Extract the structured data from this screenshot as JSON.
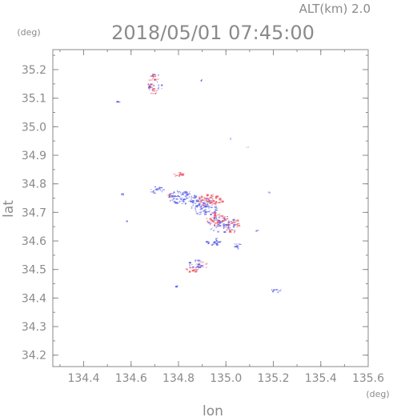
{
  "chart_data": {
    "type": "scatter",
    "title": "2018/05/01 07:45:00",
    "altitude_label": "ALT(km)  2.0",
    "xlabel": "lon",
    "ylabel": "lat",
    "x_unit": "(deg)",
    "y_unit": "(deg)",
    "xlim": [
      134.27,
      135.6
    ],
    "ylim": [
      34.16,
      35.27
    ],
    "xticks": [
      "134.4",
      "134.6",
      "134.8",
      "135.0",
      "135.2",
      "135.4",
      "135.6"
    ],
    "yticks": [
      "34.2",
      "34.3",
      "34.4",
      "34.5",
      "34.6",
      "34.7",
      "34.8",
      "34.9",
      "35.0",
      "35.1",
      "35.2"
    ],
    "grid": false,
    "colors": {
      "blue": "#5b63e8",
      "red": "#ef5b6b",
      "pink": "#f5b4bf",
      "lightblue": "#aab0f2",
      "axis": "#8a8a8a"
    },
    "clusters": [
      {
        "lon": 134.695,
        "lat": 35.15,
        "rx": 0.025,
        "ry": 0.04,
        "n": 28,
        "color": "red"
      },
      {
        "lon": 134.7,
        "lat": 35.15,
        "rx": 0.03,
        "ry": 0.04,
        "n": 18,
        "color": "blue"
      },
      {
        "lon": 134.54,
        "lat": 35.085,
        "rx": 0.006,
        "ry": 0.006,
        "n": 3,
        "color": "blue"
      },
      {
        "lon": 134.895,
        "lat": 35.167,
        "rx": 0.006,
        "ry": 0.004,
        "n": 3,
        "color": "blue"
      },
      {
        "lon": 135.018,
        "lat": 34.958,
        "rx": 0.004,
        "ry": 0.004,
        "n": 2,
        "color": "blue"
      },
      {
        "lon": 135.18,
        "lat": 34.775,
        "rx": 0.004,
        "ry": 0.004,
        "n": 2,
        "color": "blue"
      },
      {
        "lon": 134.795,
        "lat": 34.835,
        "rx": 0.02,
        "ry": 0.008,
        "n": 12,
        "color": "red"
      },
      {
        "lon": 134.81,
        "lat": 34.755,
        "rx": 0.06,
        "ry": 0.025,
        "n": 90,
        "color": "blue"
      },
      {
        "lon": 134.93,
        "lat": 34.745,
        "rx": 0.055,
        "ry": 0.02,
        "n": 80,
        "color": "red"
      },
      {
        "lon": 134.905,
        "lat": 34.72,
        "rx": 0.06,
        "ry": 0.03,
        "n": 70,
        "color": "blue"
      },
      {
        "lon": 134.705,
        "lat": 34.78,
        "rx": 0.03,
        "ry": 0.012,
        "n": 18,
        "color": "blue"
      },
      {
        "lon": 134.56,
        "lat": 34.765,
        "rx": 0.006,
        "ry": 0.006,
        "n": 4,
        "color": "blue"
      },
      {
        "lon": 134.76,
        "lat": 34.76,
        "rx": 0.01,
        "ry": 0.01,
        "n": 6,
        "color": "red"
      },
      {
        "lon": 134.955,
        "lat": 34.68,
        "rx": 0.04,
        "ry": 0.025,
        "n": 45,
        "color": "red"
      },
      {
        "lon": 135.02,
        "lat": 34.66,
        "rx": 0.035,
        "ry": 0.03,
        "n": 40,
        "color": "red"
      },
      {
        "lon": 134.98,
        "lat": 34.66,
        "rx": 0.06,
        "ry": 0.03,
        "n": 45,
        "color": "blue"
      },
      {
        "lon": 135.125,
        "lat": 34.638,
        "rx": 0.005,
        "ry": 0.004,
        "n": 3,
        "color": "blue"
      },
      {
        "lon": 134.95,
        "lat": 34.6,
        "rx": 0.035,
        "ry": 0.012,
        "n": 22,
        "color": "blue"
      },
      {
        "lon": 135.045,
        "lat": 34.585,
        "rx": 0.015,
        "ry": 0.01,
        "n": 10,
        "color": "blue"
      },
      {
        "lon": 134.895,
        "lat": 34.515,
        "rx": 0.025,
        "ry": 0.015,
        "n": 20,
        "color": "pink"
      },
      {
        "lon": 134.85,
        "lat": 34.5,
        "rx": 0.025,
        "ry": 0.012,
        "n": 20,
        "color": "red"
      },
      {
        "lon": 134.87,
        "lat": 34.52,
        "rx": 0.03,
        "ry": 0.015,
        "n": 16,
        "color": "blue"
      },
      {
        "lon": 134.79,
        "lat": 34.445,
        "rx": 0.006,
        "ry": 0.003,
        "n": 3,
        "color": "blue"
      },
      {
        "lon": 135.21,
        "lat": 34.428,
        "rx": 0.025,
        "ry": 0.006,
        "n": 10,
        "color": "blue"
      },
      {
        "lon": 134.58,
        "lat": 34.672,
        "rx": 0.004,
        "ry": 0.005,
        "n": 2,
        "color": "blue"
      },
      {
        "lon": 135.09,
        "lat": 34.93,
        "rx": 0.005,
        "ry": 0.003,
        "n": 2,
        "color": "lightblue"
      }
    ]
  }
}
